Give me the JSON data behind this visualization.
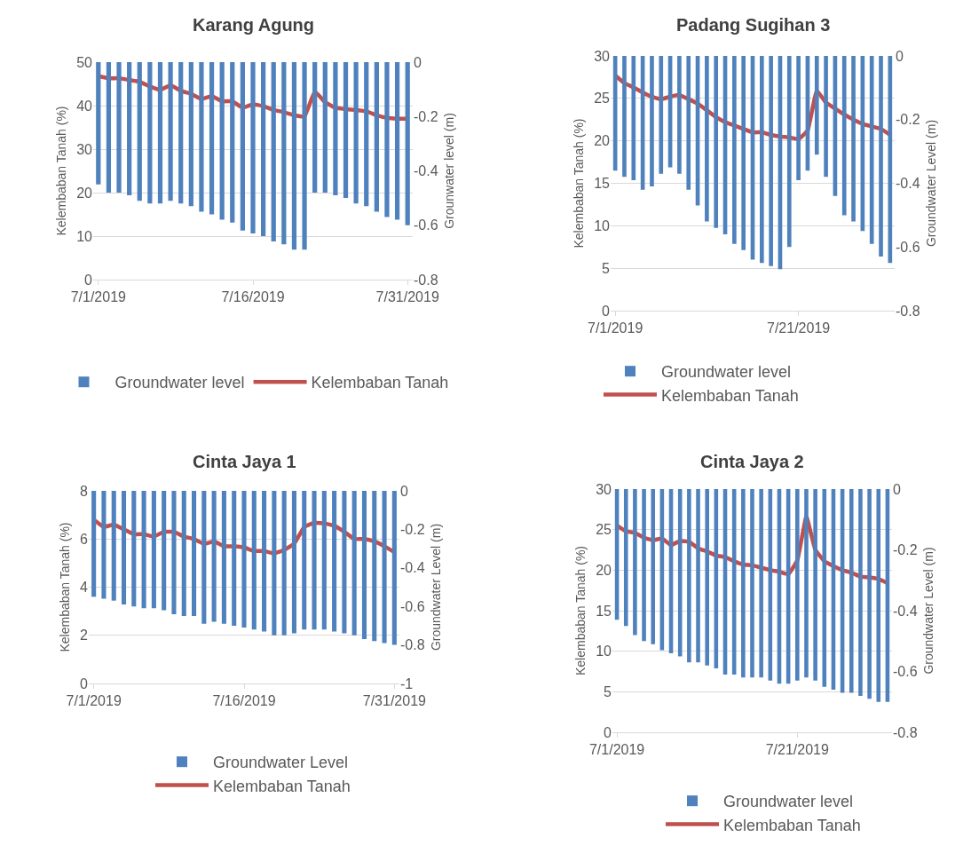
{
  "chart_data": [
    {
      "type": "bar",
      "title": "Karang Agung",
      "ylabel": "Kelembaban Tanah (%)",
      "y2label": "Grounwater level (m)",
      "x": [
        "2019-07-01",
        "2019-07-02",
        "2019-07-03",
        "2019-07-04",
        "2019-07-05",
        "2019-07-06",
        "2019-07-07",
        "2019-07-08",
        "2019-07-09",
        "2019-07-10",
        "2019-07-11",
        "2019-07-12",
        "2019-07-13",
        "2019-07-14",
        "2019-07-15",
        "2019-07-16",
        "2019-07-17",
        "2019-07-18",
        "2019-07-19",
        "2019-07-20",
        "2019-07-21",
        "2019-07-22",
        "2019-07-23",
        "2019-07-24",
        "2019-07-25",
        "2019-07-26",
        "2019-07-27",
        "2019-07-28",
        "2019-07-29",
        "2019-07-30",
        "2019-07-31"
      ],
      "series": [
        {
          "name": "Groundwater level",
          "axis": "y2",
          "color": "#4f81bd",
          "values": [
            -0.45,
            -0.48,
            -0.48,
            -0.49,
            -0.51,
            -0.52,
            -0.52,
            -0.51,
            -0.52,
            -0.53,
            -0.55,
            -0.56,
            -0.58,
            -0.59,
            -0.62,
            -0.63,
            -0.64,
            -0.66,
            -0.67,
            -0.69,
            -0.69,
            -0.48,
            -0.48,
            -0.49,
            -0.5,
            -0.52,
            -0.53,
            -0.55,
            -0.57,
            -0.58,
            -0.6
          ]
        },
        {
          "name": "Kelembaban Tanah",
          "type": "line",
          "color": "#c0504d",
          "values": [
            46.8,
            46.3,
            46.3,
            45.9,
            45.5,
            44.4,
            43.6,
            44.7,
            43.4,
            42.7,
            41.5,
            42.2,
            41,
            41,
            39.5,
            40.3,
            39.9,
            39,
            38.5,
            37.8,
            37.5,
            43.2,
            40.8,
            39.5,
            39.2,
            39,
            38.7,
            37.8,
            37.2,
            37,
            37
          ]
        }
      ],
      "xlim": [
        "2019-06-30T12:00",
        "2019-07-31T12:00"
      ],
      "xticks": [
        {
          "value": "2019-07-01",
          "label": "7/1/2019"
        },
        {
          "value": "2019-07-16",
          "label": "7/16/2019"
        },
        {
          "value": "2019-07-31",
          "label": "7/31/2019"
        }
      ],
      "ylim": [
        0,
        50
      ],
      "yticks": [
        0,
        10,
        20,
        30,
        40,
        50
      ],
      "y2lim": [
        -0.8,
        0
      ],
      "y2ticks": [
        -0.8,
        -0.6,
        -0.4,
        -0.2,
        0
      ],
      "grid": "y",
      "legend": "bottom"
    },
    {
      "type": "bar",
      "title": "Padang Sugihan 3",
      "ylabel": "Kelembaban Tanah (%)",
      "y2label": "Groundwater Level (m)",
      "x": [
        "2019-07-01",
        "2019-07-02",
        "2019-07-03",
        "2019-07-04",
        "2019-07-05",
        "2019-07-06",
        "2019-07-07",
        "2019-07-08",
        "2019-07-09",
        "2019-07-10",
        "2019-07-11",
        "2019-07-12",
        "2019-07-13",
        "2019-07-14",
        "2019-07-15",
        "2019-07-16",
        "2019-07-17",
        "2019-07-18",
        "2019-07-19",
        "2019-07-20",
        "2019-07-21",
        "2019-07-22",
        "2019-07-23",
        "2019-07-24",
        "2019-07-25",
        "2019-07-26",
        "2019-07-27",
        "2019-07-28",
        "2019-07-29",
        "2019-07-30",
        "2019-07-31"
      ],
      "series": [
        {
          "name": "Groundwater level",
          "axis": "y2",
          "color": "#4f81bd",
          "values": [
            -0.36,
            -0.38,
            -0.39,
            -0.42,
            -0.41,
            -0.37,
            -0.35,
            -0.37,
            -0.42,
            -0.47,
            -0.52,
            -0.54,
            -0.56,
            -0.59,
            -0.61,
            -0.64,
            -0.65,
            -0.66,
            -0.67,
            -0.6,
            -0.39,
            -0.36,
            -0.31,
            -0.38,
            -0.44,
            -0.5,
            -0.52,
            -0.55,
            -0.59,
            -0.63,
            -0.65
          ]
        },
        {
          "name": "Kelembaban Tanah",
          "type": "line",
          "color": "#c0504d",
          "values": [
            27.7,
            26.8,
            26.3,
            25.7,
            25.2,
            24.9,
            25.2,
            25.4,
            24.9,
            24.4,
            23.6,
            22.8,
            22.2,
            21.8,
            21.4,
            21,
            21,
            20.7,
            20.5,
            20.4,
            20.2,
            21.2,
            25.9,
            24.5,
            23.8,
            23.1,
            22.5,
            22,
            21.7,
            21.4,
            20.7
          ]
        }
      ],
      "xlim": [
        "2019-06-30T12:00",
        "2019-07-31T12:00"
      ],
      "xticks": [
        {
          "value": "2019-07-01",
          "label": "7/1/2019"
        },
        {
          "value": "2019-07-21",
          "label": "7/21/2019"
        }
      ],
      "ylim": [
        0,
        30
      ],
      "yticks": [
        0,
        5,
        10,
        15,
        20,
        25,
        30
      ],
      "y2lim": [
        -0.8,
        0
      ],
      "y2ticks": [
        -0.8,
        -0.6,
        -0.4,
        -0.2,
        0
      ],
      "grid": "y",
      "legend": "bottom"
    },
    {
      "type": "bar",
      "title": "Cinta Jaya 1",
      "ylabel": "Kelembaban Tanah (%)",
      "y2label": "Groundwater Level (m)",
      "x": [
        "2019-07-01",
        "2019-07-02",
        "2019-07-03",
        "2019-07-04",
        "2019-07-05",
        "2019-07-06",
        "2019-07-07",
        "2019-07-08",
        "2019-07-09",
        "2019-07-10",
        "2019-07-11",
        "2019-07-12",
        "2019-07-13",
        "2019-07-14",
        "2019-07-15",
        "2019-07-16",
        "2019-07-17",
        "2019-07-18",
        "2019-07-19",
        "2019-07-20",
        "2019-07-21",
        "2019-07-22",
        "2019-07-23",
        "2019-07-24",
        "2019-07-25",
        "2019-07-26",
        "2019-07-27",
        "2019-07-28",
        "2019-07-29",
        "2019-07-30",
        "2019-07-31"
      ],
      "series": [
        {
          "name": "Groundwater Level",
          "axis": "y2",
          "color": "#4f81bd",
          "values": [
            -0.55,
            -0.56,
            -0.57,
            -0.59,
            -0.6,
            -0.61,
            -0.61,
            -0.62,
            -0.64,
            -0.65,
            -0.65,
            -0.69,
            -0.68,
            -0.69,
            -0.7,
            -0.71,
            -0.72,
            -0.73,
            -0.75,
            -0.75,
            -0.74,
            -0.72,
            -0.72,
            -0.72,
            -0.73,
            -0.74,
            -0.75,
            -0.77,
            -0.78,
            -0.79,
            -0.8
          ]
        },
        {
          "name": "Kelembaban Tanah",
          "type": "line",
          "color": "#c0504d",
          "values": [
            6.8,
            6.5,
            6.6,
            6.4,
            6.2,
            6.2,
            6.1,
            6.3,
            6.3,
            6.1,
            6,
            5.8,
            5.9,
            5.7,
            5.7,
            5.65,
            5.5,
            5.5,
            5.4,
            5.55,
            5.8,
            6.5,
            6.67,
            6.65,
            6.55,
            6.3,
            6,
            6,
            5.9,
            5.7,
            5.45
          ]
        }
      ],
      "xlim": [
        "2019-06-30T12:00",
        "2019-07-31T12:00"
      ],
      "xticks": [
        {
          "value": "2019-07-01",
          "label": "7/1/2019"
        },
        {
          "value": "2019-07-16",
          "label": "7/16/2019"
        },
        {
          "value": "2019-07-31",
          "label": "7/31/2019"
        }
      ],
      "ylim": [
        0,
        8
      ],
      "yticks": [
        0,
        2,
        4,
        6,
        8
      ],
      "y2lim": [
        -1,
        0
      ],
      "y2ticks": [
        -1,
        -0.8,
        -0.6,
        -0.4,
        -0.2,
        0
      ],
      "grid": "y",
      "legend": "bottom"
    },
    {
      "type": "bar",
      "title": "Cinta Jaya 2",
      "ylabel": "Kelembaban Tanah (%)",
      "y2label": "Groundwater Level (m)",
      "x": [
        "2019-07-01",
        "2019-07-02",
        "2019-07-03",
        "2019-07-04",
        "2019-07-05",
        "2019-07-06",
        "2019-07-07",
        "2019-07-08",
        "2019-07-09",
        "2019-07-10",
        "2019-07-11",
        "2019-07-12",
        "2019-07-13",
        "2019-07-14",
        "2019-07-15",
        "2019-07-16",
        "2019-07-17",
        "2019-07-18",
        "2019-07-19",
        "2019-07-20",
        "2019-07-21",
        "2019-07-22",
        "2019-07-23",
        "2019-07-24",
        "2019-07-25",
        "2019-07-26",
        "2019-07-27",
        "2019-07-28",
        "2019-07-29",
        "2019-07-30",
        "2019-07-31"
      ],
      "series": [
        {
          "name": "Groundwater level",
          "axis": "y2",
          "color": "#4f81bd",
          "values": [
            -0.43,
            -0.45,
            -0.48,
            -0.5,
            -0.51,
            -0.53,
            -0.54,
            -0.55,
            -0.57,
            -0.57,
            -0.58,
            -0.59,
            -0.61,
            -0.61,
            -0.62,
            -0.62,
            -0.62,
            -0.63,
            -0.64,
            -0.64,
            -0.63,
            -0.62,
            -0.63,
            -0.65,
            -0.66,
            -0.67,
            -0.67,
            -0.68,
            -0.69,
            -0.7,
            -0.7
          ]
        },
        {
          "name": "Kelembaban Tanah",
          "type": "line",
          "color": "#c0504d",
          "values": [
            25.5,
            24.8,
            24.6,
            24,
            23.7,
            23.9,
            23.1,
            23.6,
            23.5,
            22.7,
            22.3,
            21.8,
            21.6,
            21.1,
            20.7,
            20.6,
            20.3,
            20,
            19.8,
            19.5,
            21.2,
            26.6,
            22.5,
            21.1,
            20.5,
            20,
            19.7,
            19.2,
            19.1,
            18.9,
            18.4
          ]
        }
      ],
      "xlim": [
        "2019-06-30T12:00",
        "2019-07-31T12:00"
      ],
      "xticks": [
        {
          "value": "2019-07-01",
          "label": "7/1/2019"
        },
        {
          "value": "2019-07-21",
          "label": "7/21/2019"
        }
      ],
      "ylim": [
        0,
        30
      ],
      "yticks": [
        0,
        5,
        10,
        15,
        20,
        25,
        30
      ],
      "y2lim": [
        -0.8,
        0
      ],
      "y2ticks": [
        -0.8,
        -0.6,
        -0.4,
        -0.2,
        0
      ],
      "grid": "y",
      "legend": "bottom"
    }
  ]
}
